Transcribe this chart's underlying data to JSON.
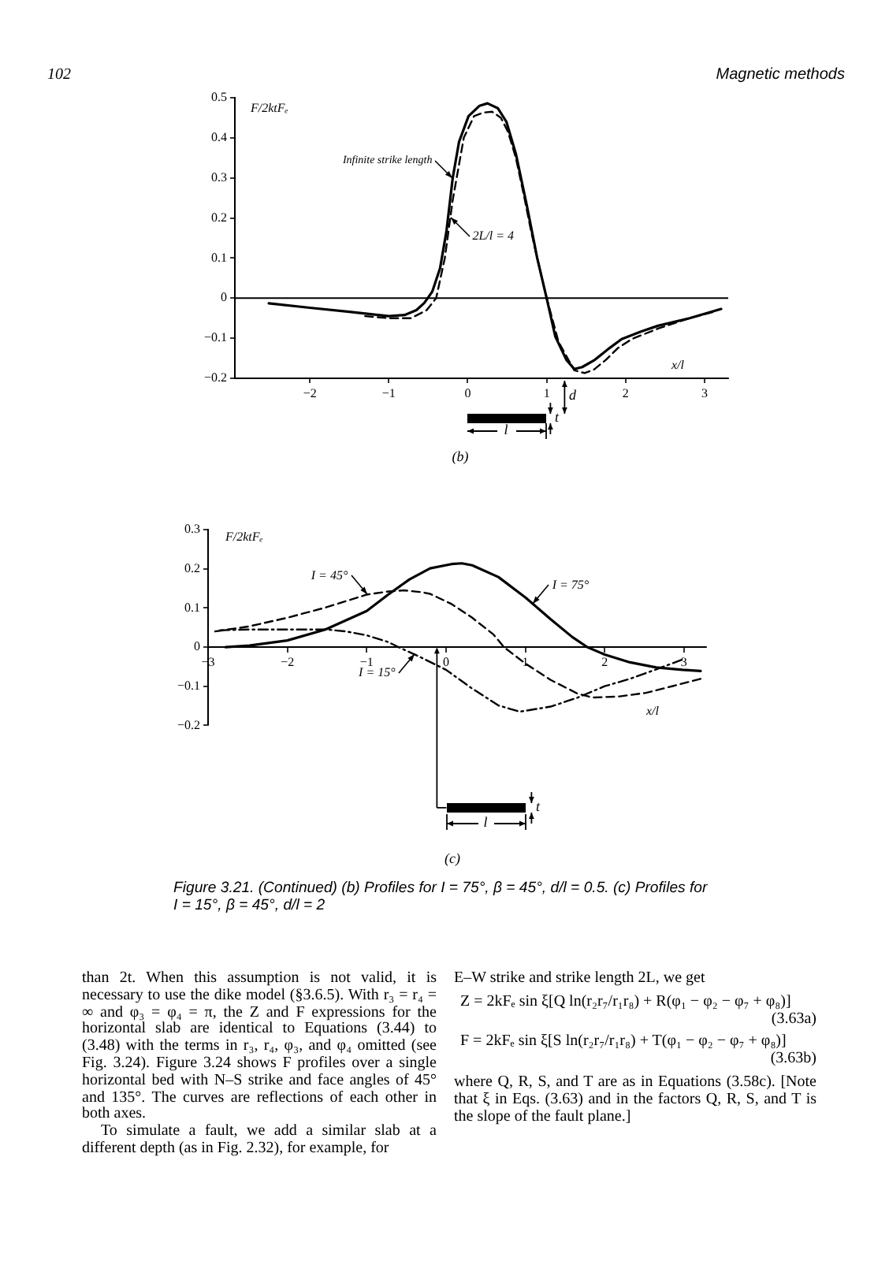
{
  "chart_data": [
    {
      "type": "line",
      "title": "(b)",
      "xlabel": "x/l",
      "ylabel": "F/2ktFₑ",
      "xlim": [
        -2.95,
        3.3
      ],
      "ylim": [
        -0.2,
        0.5
      ],
      "xticks": [
        -2,
        -1,
        0,
        1,
        2,
        3
      ],
      "yticks": [
        -0.2,
        -0.1,
        0,
        0.1,
        0.2,
        0.3,
        0.4,
        0.5
      ],
      "ref_lines": [
        {
          "axis": "y",
          "value": 0
        }
      ],
      "annotations": [
        "102",
        "Magnetic methods",
        "d",
        "t",
        "l"
      ],
      "series": [
        {
          "name": "Infinite strike length",
          "color": "#000000",
          "line_style": "solid",
          "x": [
            -2.52,
            -2,
            -1.5,
            -1,
            -0.8,
            -0.65,
            -0.55,
            -0.45,
            -0.35,
            -0.27,
            -0.19,
            -0.11,
            0.01,
            0.15,
            0.25,
            0.38,
            0.49,
            0.61,
            0.75,
            0.88,
            1.0,
            1.11,
            1.25,
            1.35,
            1.45,
            1.61,
            1.8,
            1.95,
            2.2,
            2.41,
            2.81,
            3.21
          ],
          "values": [
            -0.013,
            -0.024,
            -0.034,
            -0.045,
            -0.042,
            -0.03,
            -0.012,
            0.016,
            0.075,
            0.166,
            0.3,
            0.39,
            0.454,
            0.48,
            0.486,
            0.474,
            0.44,
            0.36,
            0.23,
            0.1,
            0,
            -0.096,
            -0.154,
            -0.177,
            -0.172,
            -0.154,
            -0.124,
            -0.102,
            -0.083,
            -0.069,
            -0.05,
            -0.027
          ]
        },
        {
          "name": "2L/l = 4",
          "color": "#000000",
          "line_style": "dashed",
          "x": [
            -1.3,
            -1,
            -0.72,
            -0.52,
            -0.4,
            -0.29,
            -0.19,
            -0.05,
            0.08,
            0.2,
            0.31,
            0.42,
            0.51,
            0.61,
            0.71,
            0.8,
            0.88,
            1.0,
            1.15,
            1.35,
            1.48,
            1.6,
            1.75,
            1.9,
            2.08,
            2.41,
            2.81,
            3.1
          ],
          "values": [
            -0.045,
            -0.05,
            -0.05,
            -0.03,
            0,
            0.1,
            0.245,
            0.4,
            0.454,
            0.463,
            0.465,
            0.45,
            0.415,
            0.35,
            0.258,
            0.17,
            0.1,
            0,
            -0.109,
            -0.18,
            -0.187,
            -0.178,
            -0.154,
            -0.125,
            -0.102,
            -0.076,
            -0.05,
            -0.035
          ]
        }
      ]
    },
    {
      "type": "line",
      "title": "(c)",
      "xlabel": "x/l",
      "ylabel": "F/2ktFₑ",
      "xlim": [
        -3,
        3.28
      ],
      "ylim": [
        -0.2,
        0.3
      ],
      "xticks": [
        -3,
        -2,
        -1,
        0,
        1,
        2,
        3
      ],
      "yticks": [
        -0.2,
        -0.1,
        0,
        0.1,
        0.2,
        0.3
      ],
      "annotations": [
        "t",
        "l",
        "Figure 3.21. (Continued) (b) Profiles for I = 75°, β = 45°, d/l = 0.5. (c) Profiles for I = 15°, β = 45°, d/l = 2"
      ],
      "series": [
        {
          "name": "I = 75°",
          "color": "#000000",
          "line_style": "solid",
          "x": [
            -2.78,
            -2.48,
            -2,
            -1.52,
            -1,
            -0.73,
            -0.46,
            -0.2,
            0.07,
            0.2,
            0.33,
            0.66,
            1.0,
            1.32,
            1.59,
            1.78,
            2.0,
            2.32,
            2.65,
            2.98,
            3.21
          ],
          "values": [
            0,
            0.004,
            0.017,
            0.045,
            0.092,
            0.134,
            0.173,
            0.201,
            0.212,
            0.214,
            0.209,
            0.179,
            0.127,
            0.071,
            0.026,
            0,
            -0.019,
            -0.039,
            -0.052,
            -0.058,
            -0.061
          ]
        },
        {
          "name": "I = 45°",
          "color": "#000000",
          "line_style": "dashed",
          "x": [
            -2.91,
            -2.48,
            -2,
            -1.52,
            -1,
            -0.73,
            -0.53,
            -0.3,
            -0.2,
            0.07,
            0.33,
            0.6,
            0.73,
            1.0,
            1.32,
            1.66,
            1.85,
            2.19,
            2.52,
            2.85,
            3.21
          ],
          "values": [
            0.04,
            0.053,
            0.075,
            0.101,
            0.134,
            0.142,
            0.145,
            0.14,
            0.136,
            0.11,
            0.075,
            0.032,
            0,
            -0.042,
            -0.084,
            -0.119,
            -0.129,
            -0.126,
            -0.117,
            -0.1,
            -0.081
          ]
        },
        {
          "name": "I = 15°",
          "color": "#000000",
          "line_style": "dotted",
          "x": [
            -2.85,
            -2.48,
            -2,
            -1.52,
            -1.26,
            -1,
            -0.73,
            -0.6,
            -0.33,
            0,
            0.33,
            0.66,
            0.93,
            1.32,
            1.66,
            2.0,
            2.32,
            2.65,
            2.98
          ],
          "values": [
            0.043,
            0.045,
            0.045,
            0.045,
            0.04,
            0.03,
            0.013,
            0,
            -0.025,
            -0.058,
            -0.106,
            -0.149,
            -0.165,
            -0.152,
            -0.129,
            -0.1,
            -0.081,
            -0.057,
            -0.032
          ]
        }
      ]
    },
    {
      "type": "other",
      "annotations": [
        "than 2t. When this assumption is not valid, it is necessary to use the dike model (§3.6.5). With r₃ = r₄ = ∞ and φ₃ = φ₄ = π, the Z and F expressions for the horizontal slab are identical to Equations (3.44) to (3.48) with the terms in r₃, r₄, φ₃, and φ₄ omitted (see Fig. 3.24). Figure 3.24 shows F profiles over a single horizontal bed with N–S strike and face angles of 45° and 135°. The curves are reflections of each other in both axes.",
        "To simulate a fault, we add a similar slab at a different depth (as in Fig. 2.32), for example, for",
        "E–W strike and strike length 2L, we get",
        "Z = 2kFₑ sin ξ[Q ln(r₂r₇/r₁r₈) + R(φ₁ − φ₂ − φ₇ + φ₈)] (3.63a)",
        "F = 2kFₑ sin ξ[S ln(r₂r₇/r₁r₈) + T(φ₁ − φ₂ − φ₇ + φ₈)] (3.63b)",
        "where Q, R, S, and T are as in Equations (3.58c). [Note that ξ in Eqs. (3.63) and in the factors Q, R, S, and T is the slope of the fault plane.]"
      ]
    }
  ]
}
